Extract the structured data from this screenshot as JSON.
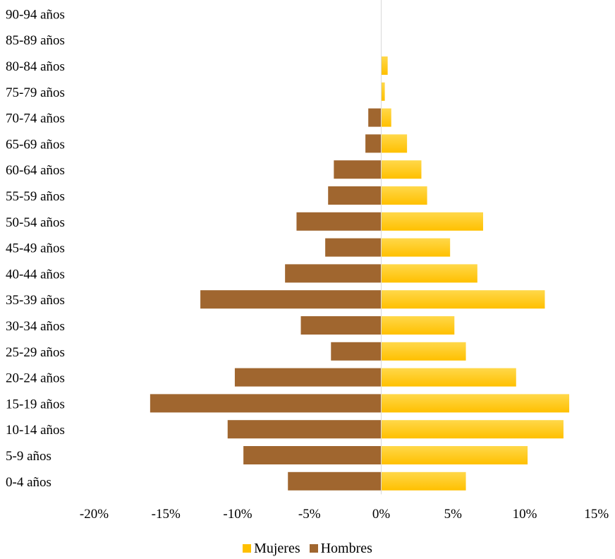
{
  "chart_data": {
    "type": "bar",
    "orientation": "horizontal",
    "subtype": "population-pyramid",
    "categories": [
      "0-4 años",
      "5-9 años",
      "10-14 años",
      "15-19 años",
      "20-24 años",
      "25-29 años",
      "30-34 años",
      "35-39 años",
      "40-44 años",
      "45-49 años",
      "50-54 años",
      "55-59 años",
      "60-64 años",
      "65-69 años",
      "70-74 años",
      "75-79 años",
      "80-84 años",
      "85-89 años",
      "90-94 años"
    ],
    "series": [
      {
        "name": "Mujeres",
        "color": "#FFC000",
        "values": [
          5.9,
          10.2,
          12.7,
          13.1,
          9.4,
          5.9,
          5.1,
          11.4,
          6.7,
          4.8,
          7.1,
          3.2,
          2.8,
          1.8,
          0.7,
          0.25,
          0.45,
          0,
          0
        ]
      },
      {
        "name": "Hombres",
        "color": "#A0662F",
        "values": [
          -6.5,
          -9.6,
          -10.7,
          -16.1,
          -10.2,
          -3.5,
          -5.6,
          -12.6,
          -6.7,
          -3.9,
          -5.9,
          -3.7,
          -3.3,
          -1.1,
          -0.9,
          0,
          0,
          0,
          0
        ]
      }
    ],
    "xticks": [
      "-20%",
      "-15%",
      "-10%",
      "-5%",
      "0%",
      "5%",
      "10%",
      "15%"
    ],
    "xlim": [
      -20,
      15
    ],
    "legend_position": "bottom",
    "grid": false
  }
}
